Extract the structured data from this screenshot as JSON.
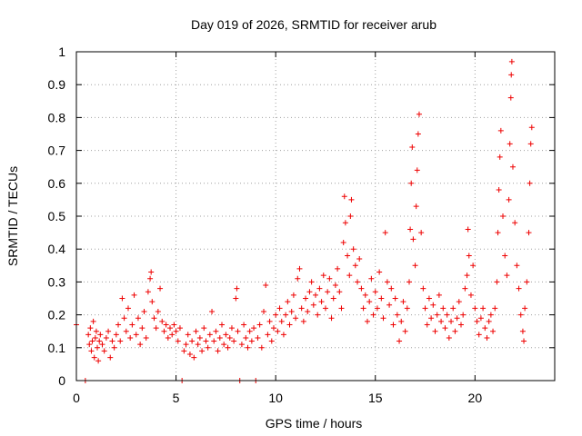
{
  "chart_data": {
    "type": "scatter",
    "title": "Day 019 of 2026, SRMTID for receiver arub",
    "xlabel": "GPS time / hours",
    "ylabel": "SRMTID / TECUs",
    "xlim": [
      0,
      24
    ],
    "ylim": [
      0,
      1
    ],
    "xticks": [
      0,
      5,
      10,
      15,
      20
    ],
    "xtick_labels": [
      "0",
      "5",
      "10",
      "15",
      "20"
    ],
    "yticks": [
      0,
      0.1,
      0.2,
      0.3,
      0.4,
      0.5,
      0.6,
      0.7,
      0.8,
      0.9,
      1
    ],
    "ytick_labels": [
      "0",
      "0.1",
      "0.2",
      "0.3",
      "0.4",
      "0.5",
      "0.6",
      "0.7",
      "0.8",
      "0.9",
      "1"
    ],
    "grid": true,
    "marker": "+",
    "color": "#ee0000",
    "series": [
      {
        "name": "SRMTID",
        "points": [
          [
            0.0,
            0.17
          ],
          [
            0.45,
            0.0
          ],
          [
            0.6,
            0.14
          ],
          [
            0.65,
            0.11
          ],
          [
            0.7,
            0.16
          ],
          [
            0.75,
            0.09
          ],
          [
            0.8,
            0.12
          ],
          [
            0.85,
            0.18
          ],
          [
            0.9,
            0.07
          ],
          [
            0.95,
            0.13
          ],
          [
            1.0,
            0.15
          ],
          [
            1.05,
            0.1
          ],
          [
            1.1,
            0.06
          ],
          [
            1.15,
            0.12
          ],
          [
            1.2,
            0.14
          ],
          [
            1.3,
            0.11
          ],
          [
            1.4,
            0.09
          ],
          [
            1.5,
            0.13
          ],
          [
            1.6,
            0.15
          ],
          [
            1.7,
            0.07
          ],
          [
            1.8,
            0.12
          ],
          [
            1.9,
            0.1
          ],
          [
            2.0,
            0.14
          ],
          [
            2.1,
            0.17
          ],
          [
            2.2,
            0.12
          ],
          [
            2.3,
            0.25
          ],
          [
            2.4,
            0.19
          ],
          [
            2.5,
            0.15
          ],
          [
            2.6,
            0.22
          ],
          [
            2.7,
            0.13
          ],
          [
            2.8,
            0.17
          ],
          [
            2.9,
            0.26
          ],
          [
            3.0,
            0.14
          ],
          [
            3.1,
            0.19
          ],
          [
            3.2,
            0.11
          ],
          [
            3.3,
            0.16
          ],
          [
            3.4,
            0.21
          ],
          [
            3.5,
            0.13
          ],
          [
            3.6,
            0.27
          ],
          [
            3.7,
            0.31
          ],
          [
            3.75,
            0.33
          ],
          [
            3.8,
            0.24
          ],
          [
            3.9,
            0.19
          ],
          [
            4.0,
            0.16
          ],
          [
            4.1,
            0.21
          ],
          [
            4.2,
            0.28
          ],
          [
            4.3,
            0.18
          ],
          [
            4.4,
            0.15
          ],
          [
            4.5,
            0.17
          ],
          [
            4.6,
            0.13
          ],
          [
            4.7,
            0.16
          ],
          [
            4.8,
            0.14
          ],
          [
            4.9,
            0.17
          ],
          [
            5.0,
            0.15
          ],
          [
            5.1,
            0.12
          ],
          [
            5.2,
            0.16
          ],
          [
            5.3,
            0.0
          ],
          [
            5.4,
            0.09
          ],
          [
            5.5,
            0.11
          ],
          [
            5.6,
            0.14
          ],
          [
            5.7,
            0.08
          ],
          [
            5.8,
            0.12
          ],
          [
            5.9,
            0.07
          ],
          [
            6.0,
            0.15
          ],
          [
            6.1,
            0.11
          ],
          [
            6.2,
            0.13
          ],
          [
            6.3,
            0.09
          ],
          [
            6.4,
            0.16
          ],
          [
            6.5,
            0.12
          ],
          [
            6.6,
            0.1
          ],
          [
            6.7,
            0.14
          ],
          [
            6.8,
            0.21
          ],
          [
            6.9,
            0.12
          ],
          [
            7.0,
            0.15
          ],
          [
            7.1,
            0.09
          ],
          [
            7.2,
            0.13
          ],
          [
            7.3,
            0.17
          ],
          [
            7.4,
            0.11
          ],
          [
            7.5,
            0.14
          ],
          [
            7.6,
            0.1
          ],
          [
            7.7,
            0.13
          ],
          [
            7.8,
            0.16
          ],
          [
            7.9,
            0.12
          ],
          [
            8.0,
            0.25
          ],
          [
            8.05,
            0.28
          ],
          [
            8.1,
            0.15
          ],
          [
            8.2,
            0.0
          ],
          [
            8.3,
            0.11
          ],
          [
            8.4,
            0.17
          ],
          [
            8.5,
            0.13
          ],
          [
            8.6,
            0.1
          ],
          [
            8.7,
            0.15
          ],
          [
            8.8,
            0.12
          ],
          [
            8.9,
            0.16
          ],
          [
            9.0,
            0.0
          ],
          [
            9.1,
            0.13
          ],
          [
            9.2,
            0.17
          ],
          [
            9.3,
            0.1
          ],
          [
            9.4,
            0.21
          ],
          [
            9.5,
            0.29
          ],
          [
            9.6,
            0.14
          ],
          [
            9.7,
            0.18
          ],
          [
            9.8,
            0.12
          ],
          [
            9.9,
            0.16
          ],
          [
            10.0,
            0.2
          ],
          [
            10.1,
            0.15
          ],
          [
            10.2,
            0.22
          ],
          [
            10.3,
            0.18
          ],
          [
            10.4,
            0.14
          ],
          [
            10.5,
            0.2
          ],
          [
            10.6,
            0.24
          ],
          [
            10.7,
            0.17
          ],
          [
            10.8,
            0.21
          ],
          [
            10.9,
            0.26
          ],
          [
            11.0,
            0.19
          ],
          [
            11.1,
            0.31
          ],
          [
            11.2,
            0.34
          ],
          [
            11.3,
            0.22
          ],
          [
            11.4,
            0.18
          ],
          [
            11.5,
            0.25
          ],
          [
            11.6,
            0.21
          ],
          [
            11.7,
            0.27
          ],
          [
            11.8,
            0.3
          ],
          [
            11.9,
            0.23
          ],
          [
            12.0,
            0.26
          ],
          [
            12.1,
            0.2
          ],
          [
            12.2,
            0.28
          ],
          [
            12.3,
            0.24
          ],
          [
            12.4,
            0.32
          ],
          [
            12.5,
            0.22
          ],
          [
            12.6,
            0.27
          ],
          [
            12.7,
            0.31
          ],
          [
            12.8,
            0.19
          ],
          [
            12.9,
            0.25
          ],
          [
            13.0,
            0.29
          ],
          [
            13.1,
            0.34
          ],
          [
            13.2,
            0.27
          ],
          [
            13.3,
            0.22
          ],
          [
            13.4,
            0.42
          ],
          [
            13.45,
            0.56
          ],
          [
            13.5,
            0.48
          ],
          [
            13.6,
            0.38
          ],
          [
            13.7,
            0.32
          ],
          [
            13.75,
            0.5
          ],
          [
            13.8,
            0.55
          ],
          [
            13.9,
            0.4
          ],
          [
            14.0,
            0.35
          ],
          [
            14.1,
            0.3
          ],
          [
            14.2,
            0.37
          ],
          [
            14.3,
            0.28
          ],
          [
            14.4,
            0.22
          ],
          [
            14.5,
            0.26
          ],
          [
            14.6,
            0.18
          ],
          [
            14.7,
            0.24
          ],
          [
            14.8,
            0.31
          ],
          [
            14.9,
            0.2
          ],
          [
            15.0,
            0.27
          ],
          [
            15.1,
            0.22
          ],
          [
            15.2,
            0.33
          ],
          [
            15.3,
            0.25
          ],
          [
            15.4,
            0.19
          ],
          [
            15.5,
            0.45
          ],
          [
            15.6,
            0.3
          ],
          [
            15.7,
            0.23
          ],
          [
            15.8,
            0.28
          ],
          [
            15.9,
            0.17
          ],
          [
            16.0,
            0.25
          ],
          [
            16.1,
            0.2
          ],
          [
            16.2,
            0.12
          ],
          [
            16.3,
            0.18
          ],
          [
            16.4,
            0.24
          ],
          [
            16.5,
            0.15
          ],
          [
            16.6,
            0.22
          ],
          [
            16.7,
            0.3
          ],
          [
            16.75,
            0.46
          ],
          [
            16.8,
            0.6
          ],
          [
            16.85,
            0.71
          ],
          [
            16.9,
            0.43
          ],
          [
            17.0,
            0.35
          ],
          [
            17.05,
            0.53
          ],
          [
            17.1,
            0.64
          ],
          [
            17.15,
            0.75
          ],
          [
            17.2,
            0.81
          ],
          [
            17.3,
            0.45
          ],
          [
            17.4,
            0.28
          ],
          [
            17.5,
            0.22
          ],
          [
            17.6,
            0.17
          ],
          [
            17.7,
            0.25
          ],
          [
            17.8,
            0.19
          ],
          [
            17.9,
            0.23
          ],
          [
            18.0,
            0.15
          ],
          [
            18.1,
            0.2
          ],
          [
            18.2,
            0.26
          ],
          [
            18.3,
            0.18
          ],
          [
            18.4,
            0.22
          ],
          [
            18.5,
            0.16
          ],
          [
            18.6,
            0.2
          ],
          [
            18.7,
            0.13
          ],
          [
            18.8,
            0.18
          ],
          [
            18.9,
            0.22
          ],
          [
            19.0,
            0.15
          ],
          [
            19.1,
            0.19
          ],
          [
            19.2,
            0.24
          ],
          [
            19.3,
            0.17
          ],
          [
            19.4,
            0.2
          ],
          [
            19.5,
            0.28
          ],
          [
            19.6,
            0.32
          ],
          [
            19.65,
            0.46
          ],
          [
            19.7,
            0.38
          ],
          [
            19.8,
            0.26
          ],
          [
            19.9,
            0.35
          ],
          [
            20.0,
            0.22
          ],
          [
            20.1,
            0.18
          ],
          [
            20.2,
            0.14
          ],
          [
            20.3,
            0.19
          ],
          [
            20.4,
            0.22
          ],
          [
            20.5,
            0.16
          ],
          [
            20.6,
            0.13
          ],
          [
            20.7,
            0.18
          ],
          [
            20.8,
            0.2
          ],
          [
            20.9,
            0.15
          ],
          [
            21.0,
            0.22
          ],
          [
            21.1,
            0.3
          ],
          [
            21.15,
            0.45
          ],
          [
            21.2,
            0.58
          ],
          [
            21.25,
            0.68
          ],
          [
            21.3,
            0.76
          ],
          [
            21.4,
            0.5
          ],
          [
            21.5,
            0.38
          ],
          [
            21.6,
            0.32
          ],
          [
            21.7,
            0.55
          ],
          [
            21.75,
            0.72
          ],
          [
            21.8,
            0.86
          ],
          [
            21.82,
            0.93
          ],
          [
            21.85,
            0.97
          ],
          [
            21.9,
            0.65
          ],
          [
            22.0,
            0.48
          ],
          [
            22.1,
            0.35
          ],
          [
            22.2,
            0.28
          ],
          [
            22.3,
            0.2
          ],
          [
            22.4,
            0.15
          ],
          [
            22.45,
            0.12
          ],
          [
            22.5,
            0.22
          ],
          [
            22.6,
            0.3
          ],
          [
            22.7,
            0.45
          ],
          [
            22.75,
            0.6
          ],
          [
            22.8,
            0.72
          ],
          [
            22.85,
            0.77
          ]
        ]
      }
    ]
  }
}
